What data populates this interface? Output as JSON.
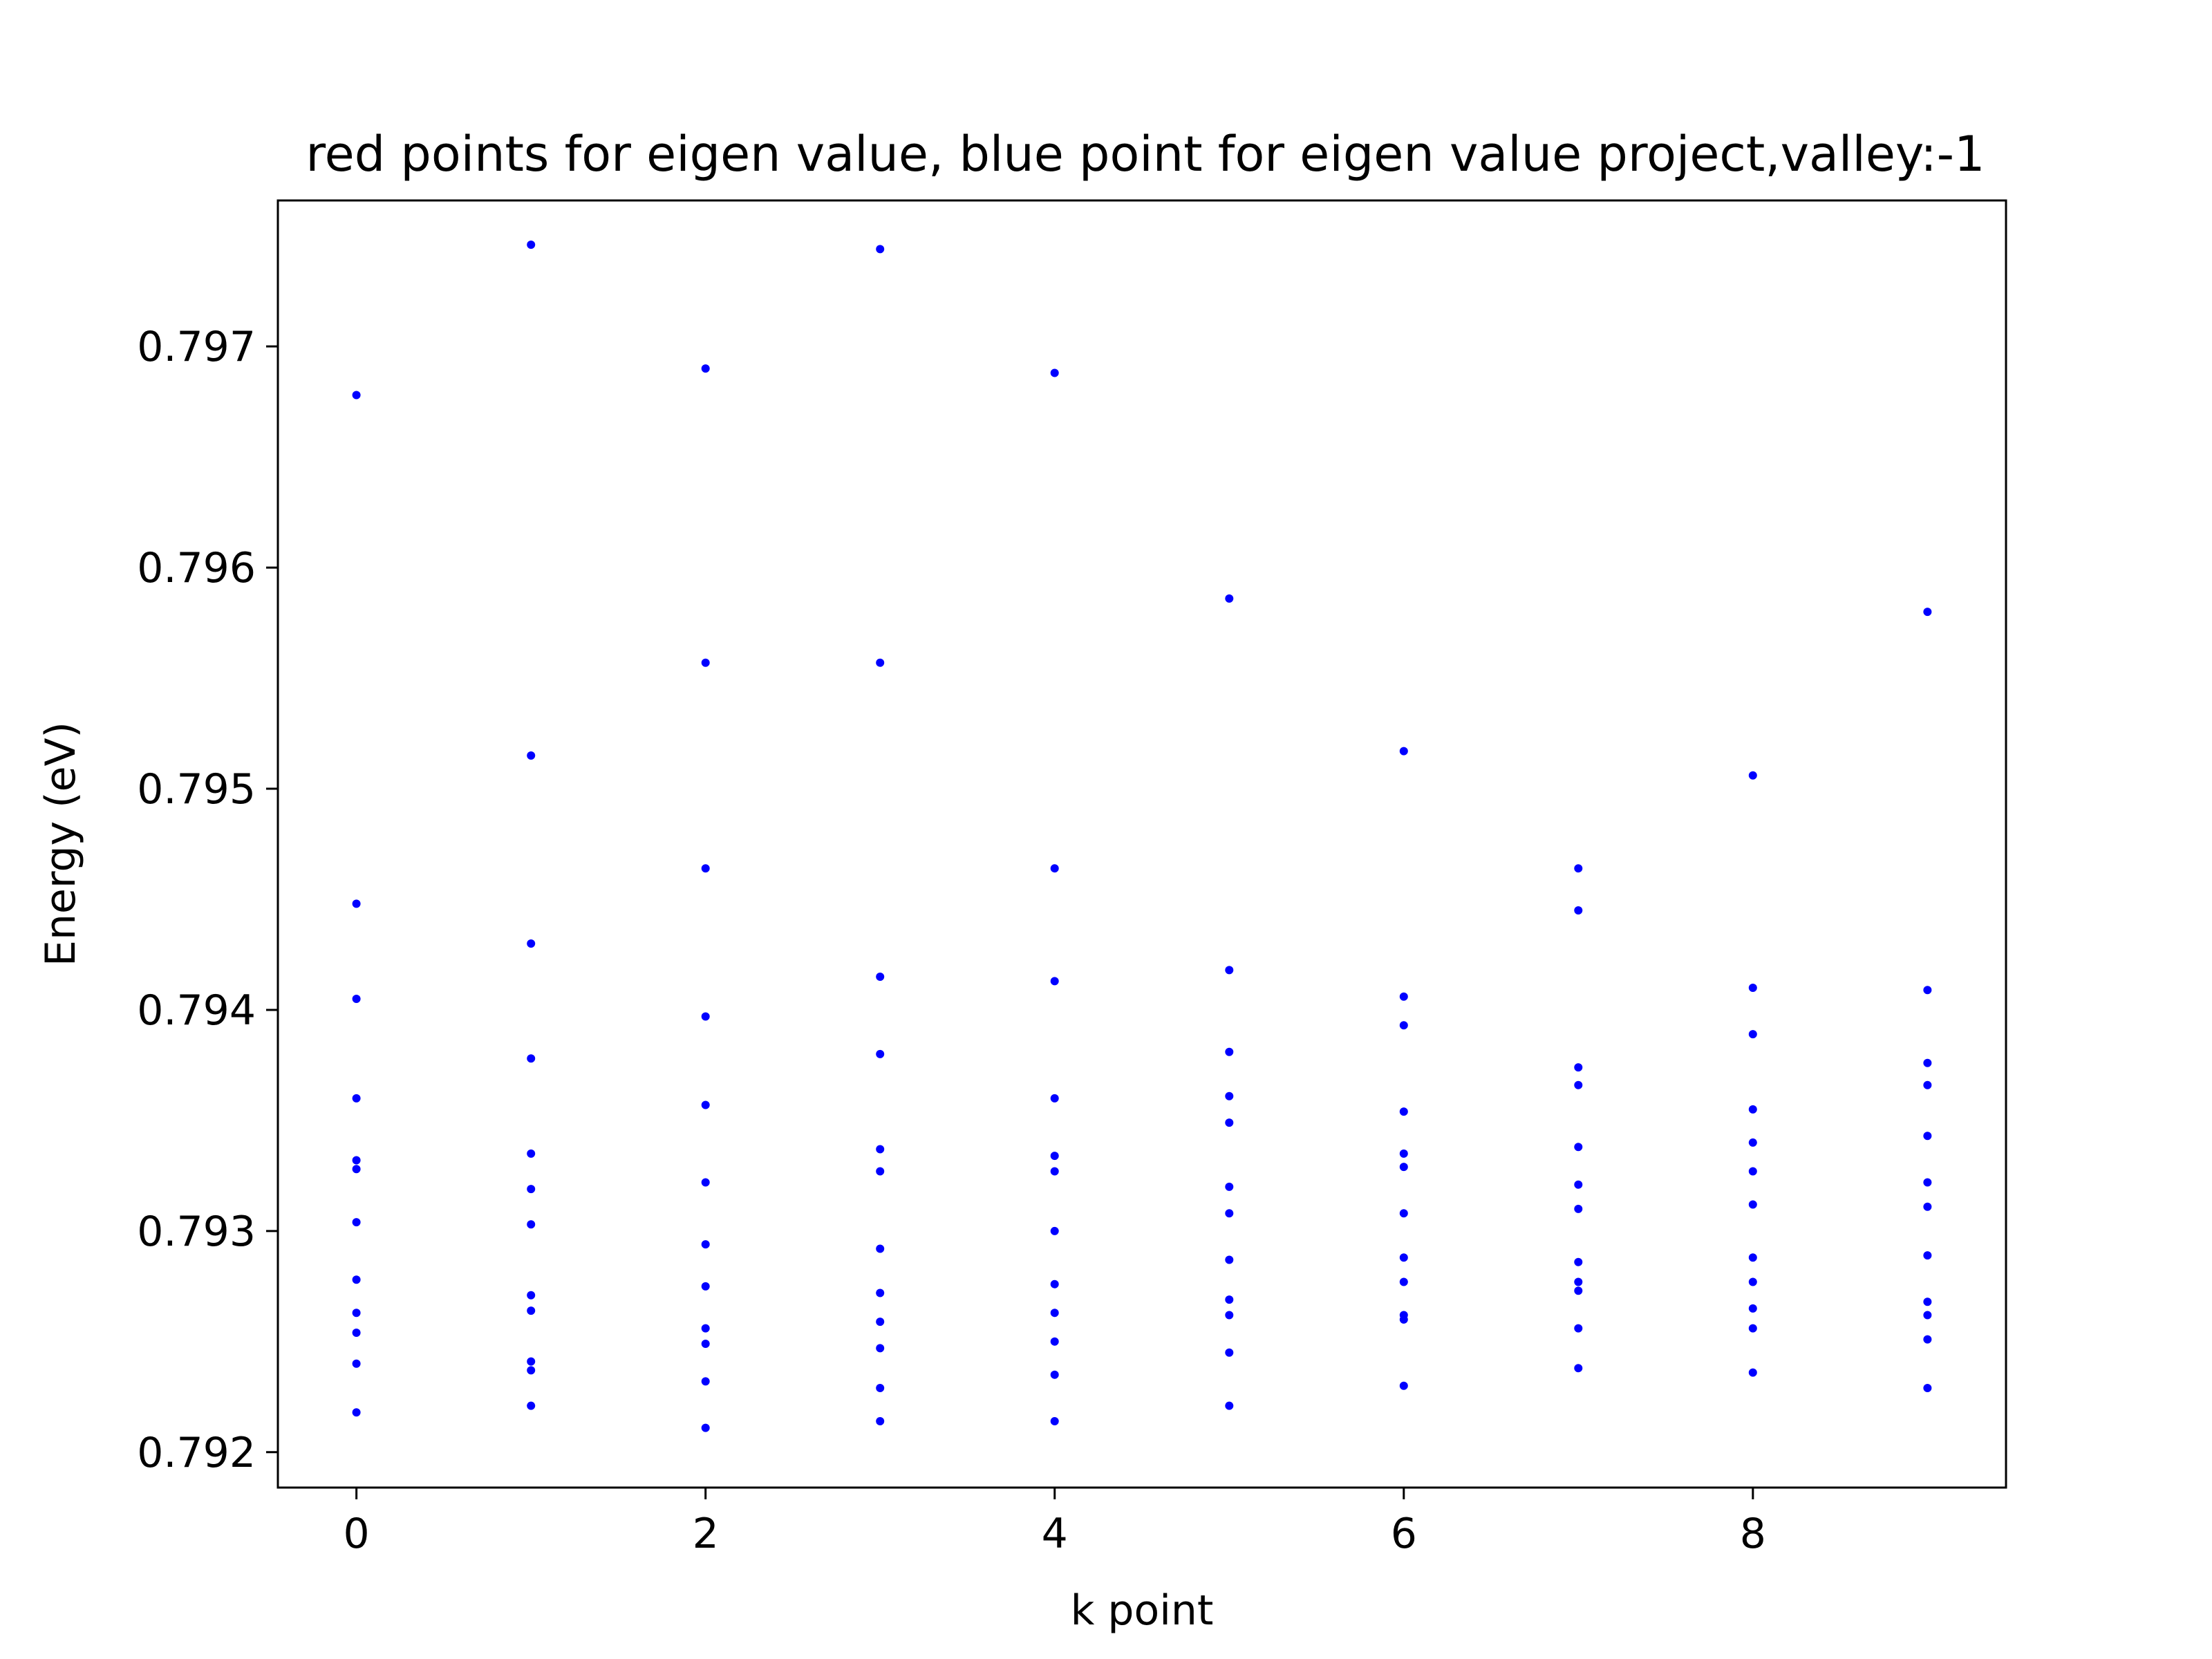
{
  "chart_data": {
    "type": "scatter",
    "title": "red points for eigen value, blue point for eigen value project,valley:-1",
    "xlabel": "k point",
    "ylabel": "Energy (eV)",
    "xlim": [
      -0.45,
      9.45
    ],
    "ylim": [
      0.79184,
      0.79766
    ],
    "xticks": [
      0,
      2,
      4,
      6,
      8
    ],
    "xtick_labels": [
      "0",
      "2",
      "4",
      "6",
      "8"
    ],
    "yticks": [
      0.792,
      0.793,
      0.794,
      0.795,
      0.796,
      0.797
    ],
    "ytick_labels": [
      "0.792",
      "0.793",
      "0.794",
      "0.795",
      "0.796",
      "0.797"
    ],
    "grid": false,
    "point_color": "#0000ff",
    "series": [
      {
        "points": [
          {
            "x": 0,
            "y": [
              0.79678,
              0.79448,
              0.79405,
              0.7936,
              0.79332,
              0.79328,
              0.79304,
              0.79278,
              0.79263,
              0.79254,
              0.7924,
              0.79218
            ]
          },
          {
            "x": 1,
            "y": [
              0.79746,
              0.79515,
              0.7943,
              0.79378,
              0.79335,
              0.79319,
              0.79303,
              0.79271,
              0.79264,
              0.79241,
              0.79237,
              0.79221
            ]
          },
          {
            "x": 2,
            "y": [
              0.7969,
              0.79557,
              0.79464,
              0.79397,
              0.79357,
              0.79322,
              0.79294,
              0.79275,
              0.79256,
              0.79249,
              0.79232,
              0.79211
            ]
          },
          {
            "x": 3,
            "y": [
              0.79744,
              0.79557,
              0.79415,
              0.7938,
              0.79337,
              0.79327,
              0.79292,
              0.79272,
              0.79259,
              0.79247,
              0.79229,
              0.79214
            ]
          },
          {
            "x": 4,
            "y": [
              0.79688,
              0.79464,
              0.79413,
              0.7936,
              0.79334,
              0.79327,
              0.793,
              0.79276,
              0.79263,
              0.7925,
              0.79235,
              0.79214
            ]
          },
          {
            "x": 5,
            "y": [
              0.79586,
              0.79418,
              0.79381,
              0.79361,
              0.79349,
              0.7932,
              0.79308,
              0.79287,
              0.79269,
              0.79262,
              0.79245,
              0.79221
            ]
          },
          {
            "x": 6,
            "y": [
              0.79517,
              0.79406,
              0.79393,
              0.79354,
              0.79335,
              0.79329,
              0.79308,
              0.79288,
              0.79277,
              0.79262,
              0.7926,
              0.7923
            ]
          },
          {
            "x": 7,
            "y": [
              0.79464,
              0.79445,
              0.79374,
              0.79366,
              0.79338,
              0.79321,
              0.7931,
              0.79286,
              0.79277,
              0.79273,
              0.79256,
              0.79238
            ]
          },
          {
            "x": 8,
            "y": [
              0.79506,
              0.7941,
              0.79389,
              0.79355,
              0.7934,
              0.79327,
              0.79312,
              0.79288,
              0.79277,
              0.79265,
              0.79256,
              0.79236
            ]
          },
          {
            "x": 9,
            "y": [
              0.7958,
              0.79409,
              0.79376,
              0.79366,
              0.79343,
              0.79322,
              0.79311,
              0.79289,
              0.79268,
              0.79262,
              0.79251,
              0.79229
            ]
          }
        ]
      }
    ]
  }
}
